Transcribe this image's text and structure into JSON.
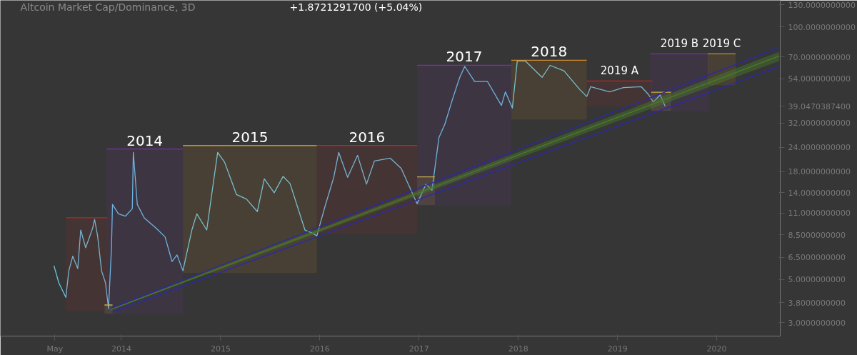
{
  "chart_data": {
    "type": "line",
    "title": "Altcoin Market Cap/Dominance, 3D",
    "subtitle": "+1.8721291700 (+5.04%)",
    "xlim": [
      2012.78,
      2020.64
    ],
    "ylim": [
      2.56,
      137
    ],
    "log": true,
    "grid": false,
    "xticks": [
      {
        "value": 2013.33,
        "label": "May"
      },
      2014,
      2015,
      2016,
      2017,
      2018,
      2019,
      2020
    ],
    "yticks": [
      {
        "value": 3,
        "label": "3.0000000000"
      },
      {
        "value": 3.8,
        "label": "3.8000000000"
      },
      {
        "value": 5,
        "label": "5.0000000000"
      },
      {
        "value": 6.5,
        "label": "6.5000000000"
      },
      {
        "value": 8.5,
        "label": "8.5000000000"
      },
      {
        "value": 11,
        "label": "11.0000000000"
      },
      {
        "value": 14,
        "label": "14.0000000000"
      },
      {
        "value": 18,
        "label": "18.0000000000"
      },
      {
        "value": 24,
        "label": "24.0000000000"
      },
      {
        "value": 32,
        "label": "32.0000000000"
      },
      {
        "value": 39.04703874,
        "label": "39.0470387400"
      },
      {
        "value": 54,
        "label": "54.0000000000"
      },
      {
        "value": 70,
        "label": "70.0000000000"
      },
      {
        "value": 100,
        "label": "100.0000000000"
      },
      {
        "value": 130,
        "label": "130.0000000000"
      }
    ],
    "series": [
      {
        "color": "#6ec6e8",
        "x": [
          2013.32,
          2013.37,
          2013.44,
          2013.47,
          2013.51,
          2013.56,
          2013.59,
          2013.64,
          2013.71,
          2013.73,
          2013.76,
          2013.8,
          2013.84,
          2013.87,
          2013.9,
          2013.91,
          2013.97,
          2014.04,
          2014.11,
          2014.12,
          2014.16,
          2014.23,
          2014.35,
          2014.44,
          2014.51,
          2014.56,
          2014.62,
          2014.71,
          2014.76,
          2014.86,
          2014.91,
          2014.97,
          2015.04,
          2015.16,
          2015.26,
          2015.37,
          2015.44,
          2015.54,
          2015.63,
          2015.7,
          2015.85,
          2015.92,
          2015.97,
          2015.98,
          2016.05,
          2016.14,
          2016.19,
          2016.28,
          2016.38,
          2016.47,
          2016.55,
          2016.71,
          2016.82,
          2016.93,
          2016.98,
          2017.07,
          2017.13,
          2017.2,
          2017.26,
          2017.34,
          2017.41,
          2017.46,
          2017.56,
          2017.69,
          2017.83,
          2017.87,
          2017.94,
          2017.99,
          2018.07,
          2018.24,
          2018.32,
          2018.46,
          2018.62,
          2018.69,
          2018.73,
          2018.92,
          2019.06,
          2019.24,
          2019.31,
          2019.36,
          2019.43,
          2019.48
        ],
        "values": [
          5.9,
          4.8,
          4.05,
          5.55,
          6.6,
          5.7,
          9.0,
          7.3,
          9.2,
          10.2,
          8.4,
          5.55,
          4.8,
          3.55,
          7.3,
          12.2,
          10.9,
          10.6,
          11.6,
          22.6,
          12.2,
          10.4,
          9.2,
          8.3,
          6.2,
          6.7,
          5.55,
          9.0,
          10.9,
          9.0,
          13.7,
          22.6,
          20.1,
          13.7,
          13.0,
          11.2,
          16.5,
          14.0,
          17.0,
          15.6,
          9.0,
          8.7,
          8.4,
          8.8,
          11.8,
          16.8,
          22.6,
          16.8,
          21.8,
          15.5,
          20.4,
          21.1,
          18.7,
          14.0,
          12.3,
          15.5,
          14.4,
          26.9,
          31.6,
          42.9,
          55.0,
          62.6,
          52.3,
          52.3,
          39.4,
          46.3,
          38.2,
          66.8,
          66.8,
          55.0,
          63.4,
          59.4,
          47.6,
          43.8,
          49.2,
          46.3,
          48.7,
          49.2,
          45.0,
          41.1,
          44.6,
          39.04703874
        ]
      },
      {
        "type": "line",
        "color": "#b22828",
        "x": [
          2013.44,
          2013.86
        ],
        "values": [
          10.4,
          10.4
        ],
        "lower": [
          3.43,
          3.43
        ],
        "upper": [
          10.4,
          10.4
        ]
      },
      {
        "type": "line",
        "name": "2014",
        "color": "#7b2ea8",
        "x": [
          2013.85,
          2014.62
        ],
        "values": [
          23.5,
          23.5
        ],
        "lower": [
          3.32,
          3.32
        ],
        "upper": [
          23.5,
          23.5
        ]
      },
      {
        "type": "line",
        "color": "#c8b040",
        "x": [
          2013.83,
          2013.91
        ],
        "values": [
          3.7,
          3.7
        ],
        "lower": [
          3.34,
          3.34
        ],
        "upper": [
          3.7,
          3.7
        ]
      },
      {
        "type": "line",
        "name": "2015",
        "color": "#d08a2a",
        "x": [
          2014.62,
          2015.97
        ],
        "values": [
          24.5,
          24.5
        ],
        "lower": [
          5.4,
          5.4
        ],
        "upper": [
          24.5,
          24.5
        ]
      },
      {
        "type": "line",
        "name": "2016",
        "color": "#b22828",
        "x": [
          2015.97,
          2016.98
        ],
        "values": [
          24.5,
          24.5
        ],
        "lower": [
          8.6,
          8.6
        ],
        "upper": [
          24.5,
          24.5
        ]
      },
      {
        "type": "line",
        "name": "2017",
        "color": "#7b2ea8",
        "x": [
          2016.98,
          2017.93
        ],
        "values": [
          63.5,
          63.5
        ],
        "lower": [
          12.0,
          12.0
        ],
        "upper": [
          63.5,
          63.5
        ]
      },
      {
        "type": "line",
        "color": "#c8b040",
        "x": [
          2016.98,
          2017.16
        ],
        "values": [
          16.9,
          16.9
        ],
        "lower": [
          12.1,
          12.1
        ],
        "upper": [
          16.9,
          16.9
        ]
      },
      {
        "type": "line",
        "name": "2018",
        "color": "#d08a2a",
        "x": [
          2017.93,
          2018.69
        ],
        "values": [
          67.3,
          67.3
        ],
        "lower": [
          33.4,
          33.4
        ],
        "upper": [
          67.3,
          67.3
        ]
      },
      {
        "type": "line",
        "name": "2019 A",
        "color": "#b22828",
        "x": [
          2018.69,
          2019.35
        ],
        "values": [
          52.7,
          52.7
        ],
        "lower": [
          38.9,
          38.9
        ],
        "upper": [
          52.7,
          52.7
        ]
      },
      {
        "type": "line",
        "name": "2019 B",
        "color": "#7b2ea8",
        "x": [
          2019.33,
          2019.92
        ],
        "values": [
          72.7,
          72.7
        ],
        "lower": [
          36.7,
          36.7
        ],
        "upper": [
          72.7,
          72.7
        ]
      },
      {
        "type": "line",
        "color": "#c8b040",
        "x": [
          2019.34,
          2019.54
        ],
        "values": [
          46.1,
          46.1
        ],
        "lower": [
          37.0,
          37.0
        ],
        "upper": [
          46.1,
          46.1
        ]
      },
      {
        "type": "line",
        "name": "2019 C",
        "color": "#d08a2a",
        "x": [
          2019.91,
          2020.19
        ],
        "values": [
          72.7,
          72.7
        ],
        "lower": [
          50.1,
          50.1
        ],
        "upper": [
          72.7,
          72.7
        ]
      },
      {
        "type": "line",
        "color": "#4a7a2a",
        "x": [
          2013.89,
          2020.63
        ],
        "values": [
          3.5,
          70.8
        ],
        "lower": [
          3.48,
          66.8
        ],
        "upper": [
          3.53,
          74.5
        ]
      },
      {
        "type": "line",
        "color": "#2a2aa8",
        "x": [
          2013.89,
          2020.63
        ],
        "values": [
          3.55,
          78.4
        ]
      },
      {
        "type": "line",
        "color": "#2a2aa8",
        "x": [
          2013.93,
          2020.63
        ],
        "values": [
          3.43,
          62.4
        ]
      }
    ]
  }
}
